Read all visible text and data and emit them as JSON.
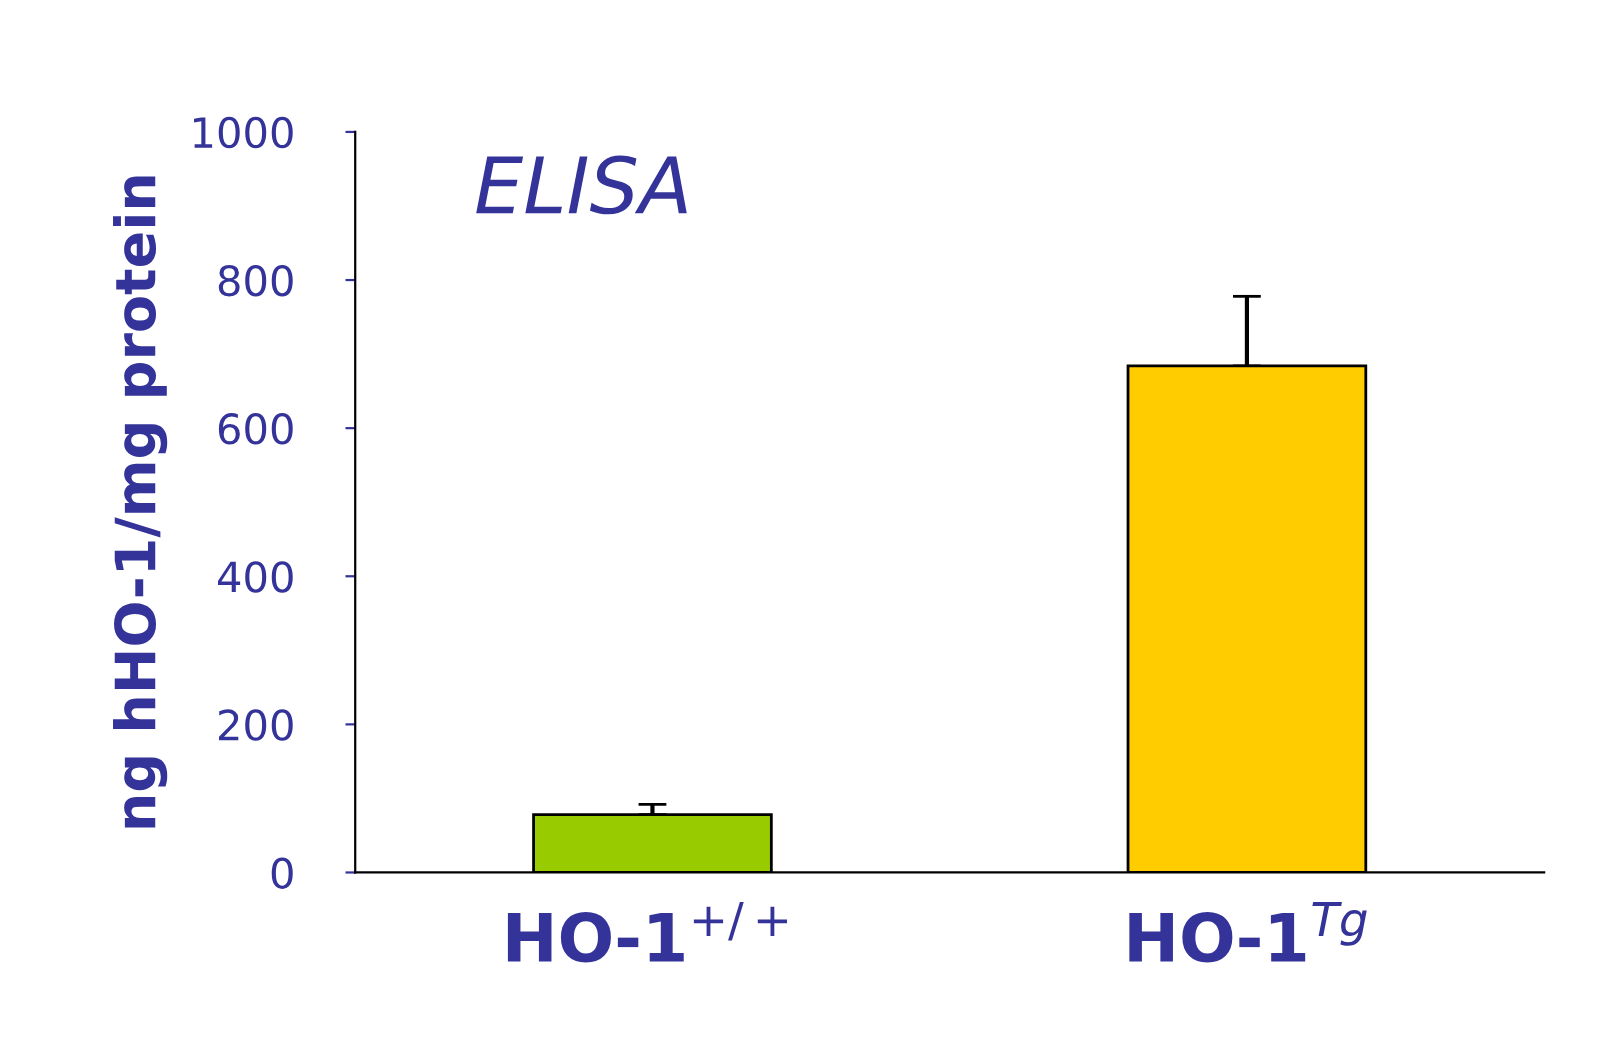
{
  "chart_data": {
    "type": "bar",
    "title": "ELISA",
    "ylabel": "ng hHO-1/mg protein",
    "categories": [
      "HO-1$^{+/+}$",
      "HO-1$^{Tg}$"
    ],
    "values": [
      78,
      684
    ],
    "colors": [
      "#99cc00",
      "#ffcc00"
    ],
    "errors": [
      [
        78,
        92
      ],
      [
        684,
        778
      ]
    ],
    "ylim": [
      0,
      1000
    ],
    "yticks": [
      0,
      200,
      400,
      600,
      800,
      1000
    ],
    "grid": false
  }
}
